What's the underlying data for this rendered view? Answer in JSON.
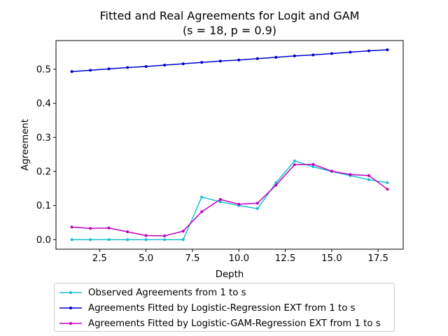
{
  "chart_data": {
    "type": "line",
    "title": "Fitted and Real Agreements for Logit and GAM",
    "subtitle": "(s = 18, p = 0.9)",
    "xlabel": "Depth",
    "ylabel": "Agreement",
    "xlim": [
      0.15,
      18.85
    ],
    "ylim": [
      -0.028,
      0.584
    ],
    "x_ticks": [
      2.5,
      5.0,
      7.5,
      10.0,
      12.5,
      15.0,
      17.5
    ],
    "x_tick_labels": [
      "2.5",
      "5.0",
      "7.5",
      "10.0",
      "12.5",
      "15.0",
      "17.5"
    ],
    "y_ticks": [
      0.0,
      0.1,
      0.2,
      0.3,
      0.4,
      0.5
    ],
    "y_tick_labels": [
      "0.0",
      "0.1",
      "0.2",
      "0.3",
      "0.4",
      "0.5"
    ],
    "grid": false,
    "legend_position": "below",
    "x": [
      1,
      2,
      3,
      4,
      5,
      6,
      7,
      8,
      9,
      10,
      11,
      12,
      13,
      14,
      15,
      16,
      17,
      18
    ],
    "series": [
      {
        "name": "Observed Agreements from 1 to s",
        "color": "#17becf",
        "values": [
          0.0,
          0.0,
          0.0,
          0.0,
          0.0,
          0.0,
          0.0,
          0.125,
          0.111,
          0.1,
          0.091,
          0.167,
          0.231,
          0.214,
          0.2,
          0.188,
          0.176,
          0.167
        ]
      },
      {
        "name": "Agreements Fitted by Logistic-Regression EXT from 1 to s",
        "color": "#0000cc",
        "values": [
          0.493,
          0.497,
          0.501,
          0.505,
          0.508,
          0.512,
          0.516,
          0.52,
          0.524,
          0.527,
          0.531,
          0.535,
          0.539,
          0.542,
          0.546,
          0.55,
          0.554,
          0.557
        ]
      },
      {
        "name": "Agreements Fitted by Logistic-GAM-Regression EXT from 1 to s",
        "color": "#bf00bf",
        "values": [
          0.037,
          0.033,
          0.034,
          0.023,
          0.012,
          0.011,
          0.025,
          0.082,
          0.118,
          0.104,
          0.107,
          0.16,
          0.22,
          0.221,
          0.201,
          0.191,
          0.188,
          0.148
        ]
      }
    ]
  }
}
